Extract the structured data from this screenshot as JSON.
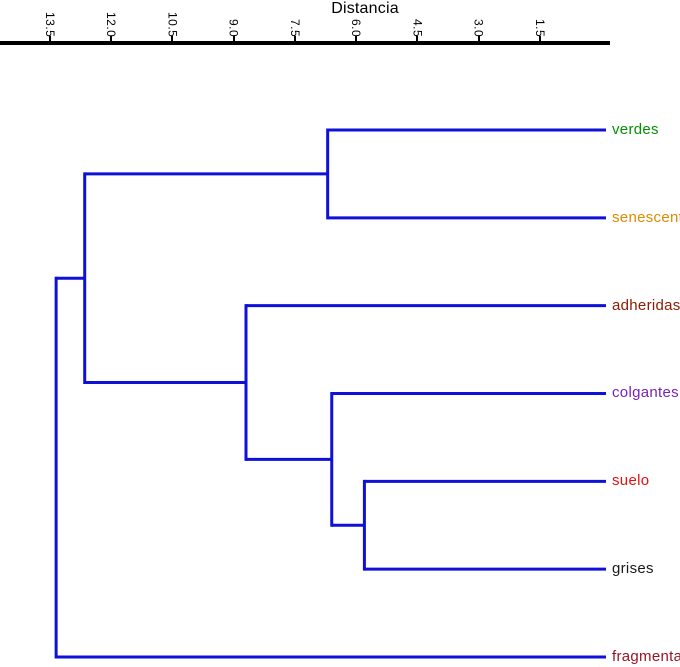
{
  "chart_data": {
    "type": "dendrogram",
    "title": "Distancia",
    "orientation": "horizontal; leaves on right, distance axis along top decreasing left-to-right",
    "axis": {
      "title": "Distancia",
      "position": "top",
      "tick_labels": [
        "13.5",
        "12.0",
        "10.5",
        "9.0",
        "7.5",
        "6.0",
        "4.5",
        "3.0",
        "1.5"
      ],
      "min": 0,
      "max": 14.7,
      "grid": false
    },
    "line_color": "#0f10d8",
    "axis_color": "#000000",
    "leaves": [
      {
        "label": "verdes",
        "color": "#009000"
      },
      {
        "label": "senescentes",
        "color": "#e08a00"
      },
      {
        "label": "adheridas",
        "color": "#8b1a00"
      },
      {
        "label": "colgantes",
        "color": "#7722bb"
      },
      {
        "label": "suelo",
        "color": "#e31010"
      },
      {
        "label": "grises",
        "color": "#1a1a1a"
      },
      {
        "label": "fragmentadas",
        "color": "#991425"
      }
    ],
    "merges": [
      {
        "id": "M0",
        "left": "verdes",
        "right": "senescentes",
        "distance": 6.7
      },
      {
        "id": "M1",
        "left": "suelo",
        "right": "grises",
        "distance": 5.8
      },
      {
        "id": "M2",
        "left": "colgantes",
        "right": "M1",
        "distance": 6.6
      },
      {
        "id": "M3",
        "left": "adheridas",
        "right": "M2",
        "distance": 8.7
      },
      {
        "id": "M4",
        "left": "M0",
        "right": "M3",
        "distance": 12.65
      },
      {
        "id": "M5",
        "left": "M4",
        "right": "fragmentadas",
        "distance": 13.35
      }
    ]
  }
}
